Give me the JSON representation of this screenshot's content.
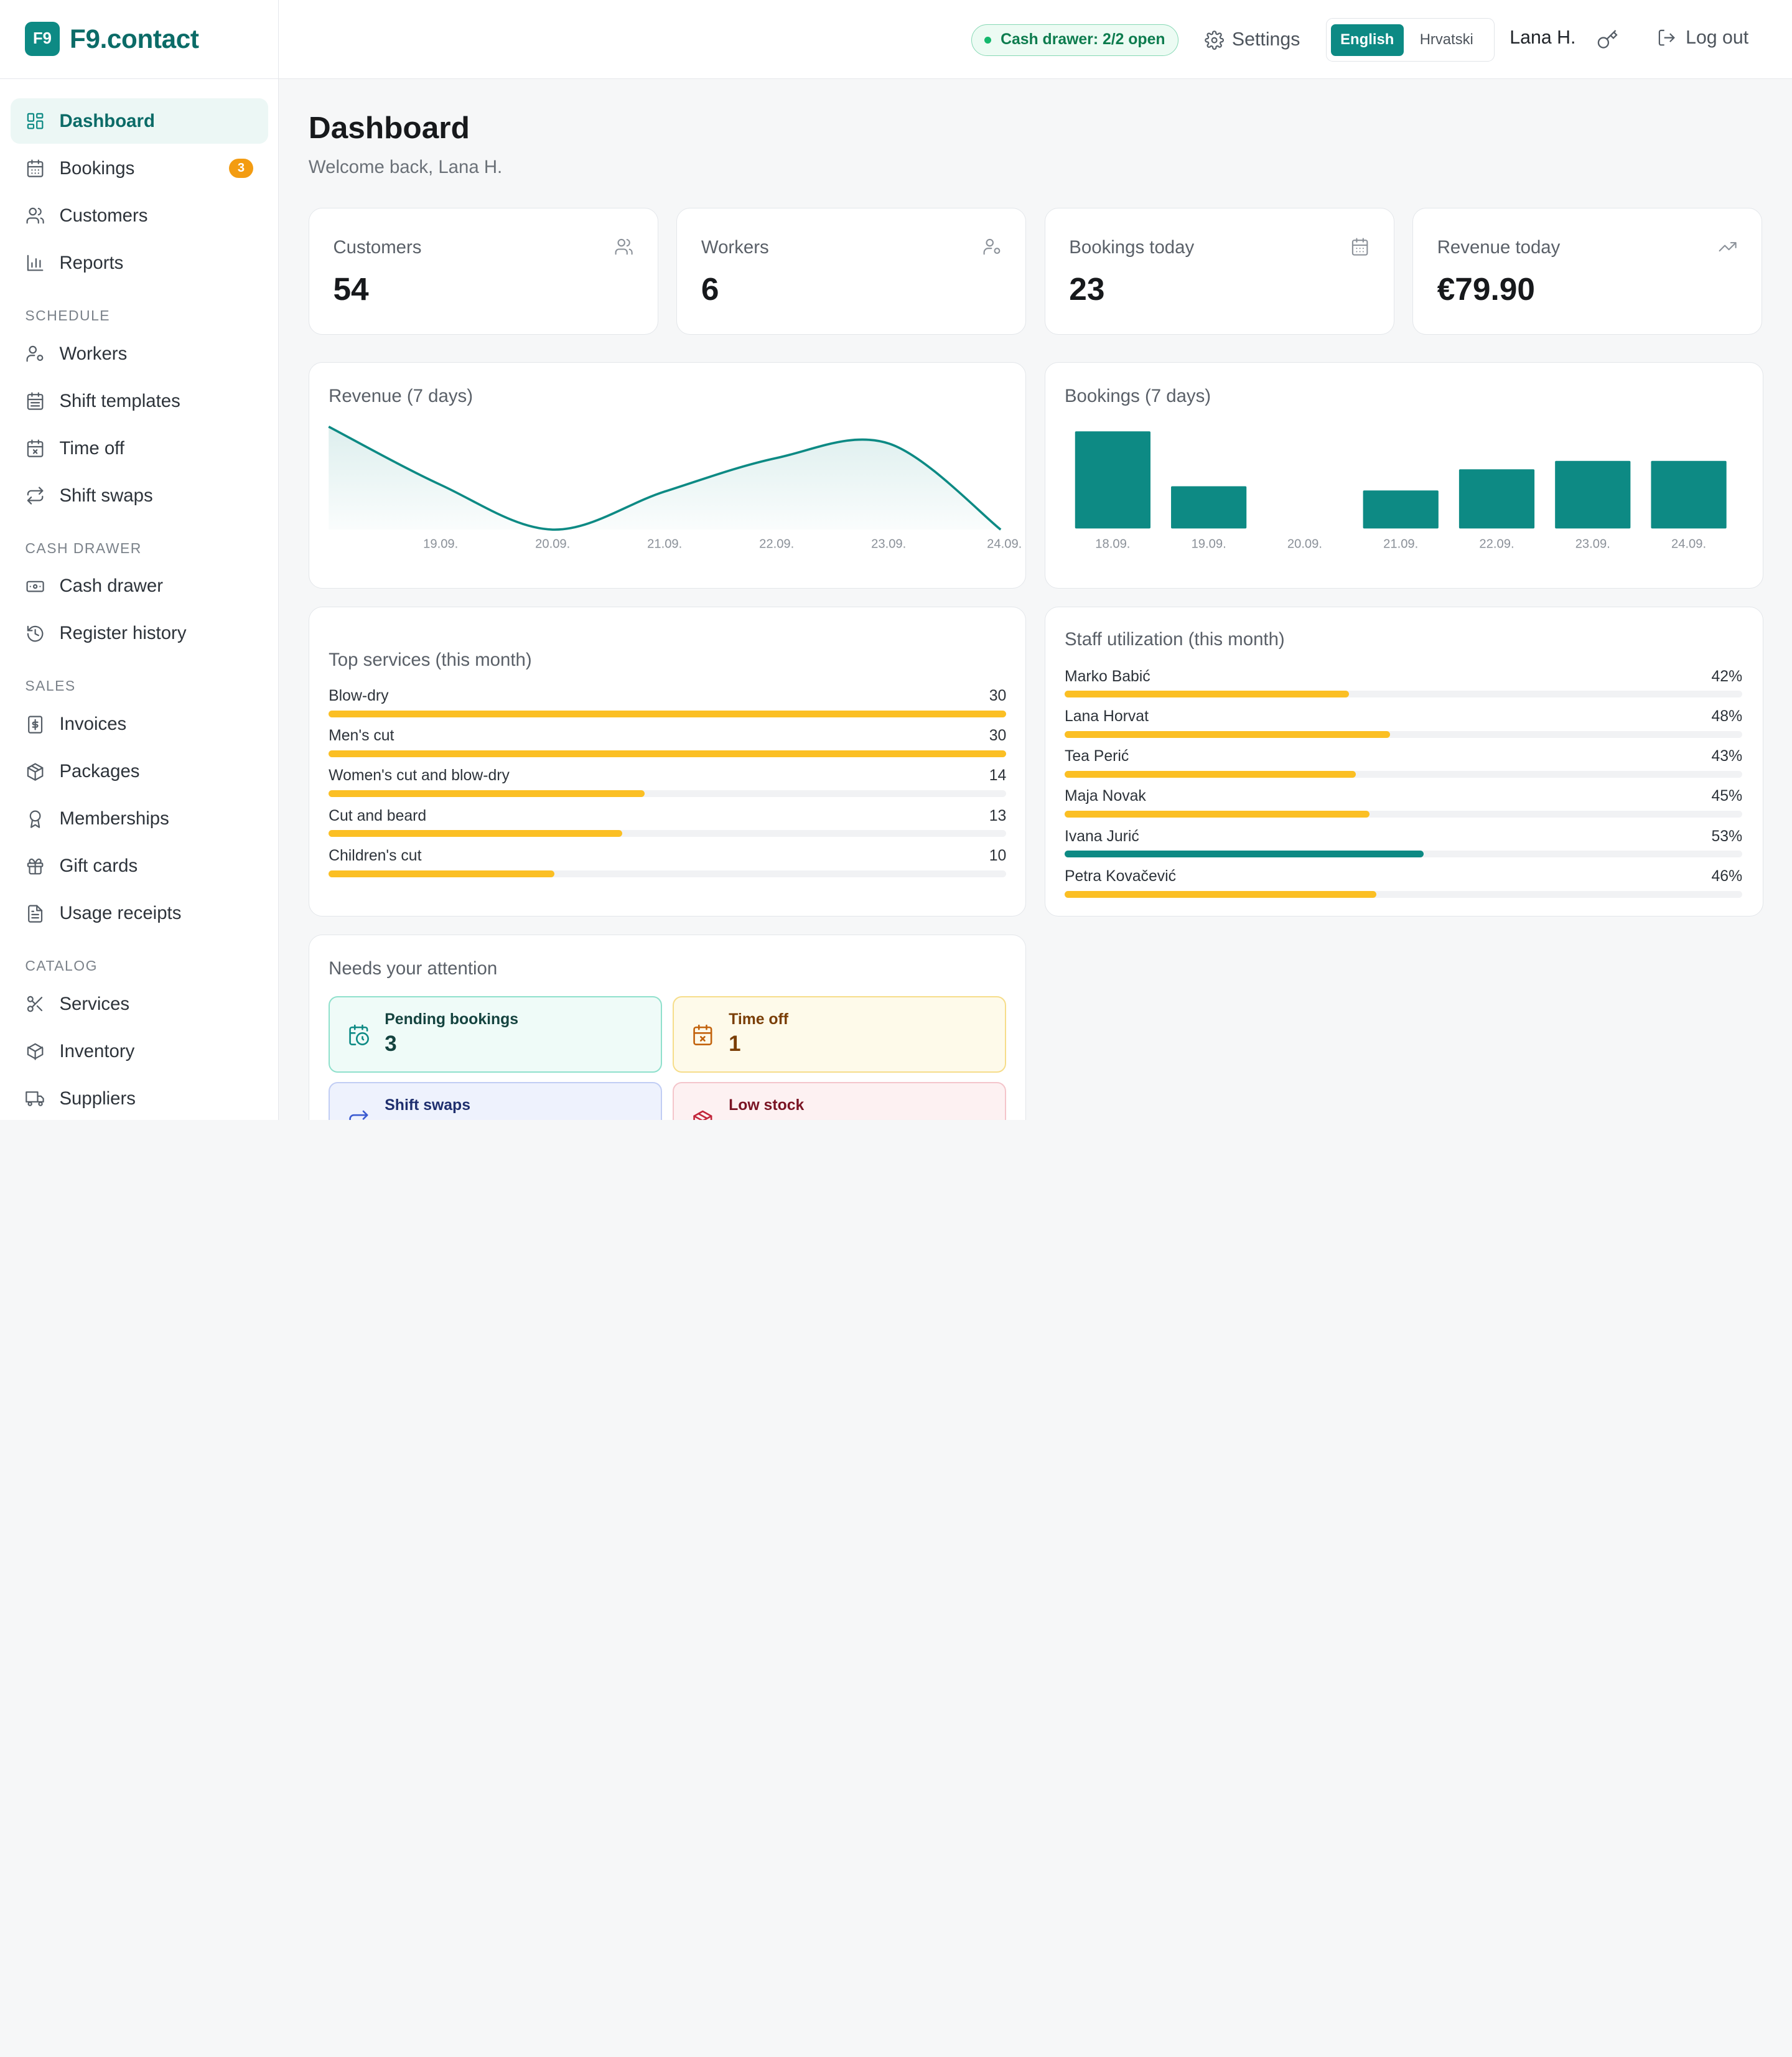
{
  "brand": {
    "logo_text": "F9",
    "name": "F9.contact"
  },
  "sidebar": {
    "items": [
      {
        "label": "Dashboard",
        "icon": "dashboard-icon",
        "active": true
      },
      {
        "label": "Bookings",
        "icon": "calendar-icon",
        "badge": "3"
      },
      {
        "label": "Customers",
        "icon": "users-icon"
      },
      {
        "label": "Reports",
        "icon": "bar-chart-icon"
      }
    ],
    "sections": [
      {
        "title": "SCHEDULE",
        "items": [
          {
            "label": "Workers",
            "icon": "user-cog-icon"
          },
          {
            "label": "Shift templates",
            "icon": "calendar-grid-icon"
          },
          {
            "label": "Time off",
            "icon": "calendar-x-icon"
          },
          {
            "label": "Shift swaps",
            "icon": "swap-icon"
          }
        ]
      },
      {
        "title": "CASH DRAWER",
        "items": [
          {
            "label": "Cash drawer",
            "icon": "banknote-icon"
          },
          {
            "label": "Register history",
            "icon": "history-icon"
          }
        ]
      },
      {
        "title": "SALES",
        "items": [
          {
            "label": "Invoices",
            "icon": "invoice-icon"
          },
          {
            "label": "Packages",
            "icon": "package-icon"
          },
          {
            "label": "Memberships",
            "icon": "award-icon"
          },
          {
            "label": "Gift cards",
            "icon": "gift-icon"
          },
          {
            "label": "Usage receipts",
            "icon": "receipt-icon"
          }
        ]
      },
      {
        "title": "CATALOG",
        "items": [
          {
            "label": "Services",
            "icon": "scissors-icon"
          },
          {
            "label": "Inventory",
            "icon": "box-icon"
          },
          {
            "label": "Suppliers",
            "icon": "truck-icon"
          }
        ]
      }
    ]
  },
  "topbar": {
    "cash_drawer": "Cash drawer: 2/2 open",
    "settings": "Settings",
    "lang_active": "English",
    "lang_other": "Hrvatski",
    "user": "Lana H.",
    "logout": "Log out"
  },
  "page": {
    "title": "Dashboard",
    "subtitle": "Welcome back, Lana H."
  },
  "stats": [
    {
      "label": "Customers",
      "value": "54",
      "icon": "users-icon"
    },
    {
      "label": "Workers",
      "value": "6",
      "icon": "user-cog-icon"
    },
    {
      "label": "Bookings today",
      "value": "23",
      "icon": "calendar-icon"
    },
    {
      "label": "Revenue today",
      "value": "€79.90",
      "icon": "trending-up-icon"
    }
  ],
  "revenue_card": {
    "title": "Revenue (7 days)"
  },
  "bookings_card": {
    "title": "Bookings (7 days)"
  },
  "chart_data": [
    {
      "type": "area",
      "title": "Revenue (7 days)",
      "x": [
        "18.09.",
        "19.09.",
        "20.09.",
        "21.09.",
        "22.09.",
        "23.09.",
        "24.09."
      ],
      "x_tick_labels": [
        "19.09.",
        "20.09.",
        "21.09.",
        "22.09.",
        "23.09.",
        "24.09."
      ],
      "values": [
        92,
        40,
        0,
        34,
        64,
        77,
        0
      ],
      "ylim": [
        0,
        95
      ],
      "grid": false,
      "color": "#0d8a84"
    },
    {
      "type": "bar",
      "title": "Bookings (7 days)",
      "categories": [
        "18.09.",
        "19.09.",
        "20.09.",
        "21.09.",
        "22.09.",
        "23.09.",
        "24.09."
      ],
      "values": [
        23,
        10,
        0,
        9,
        14,
        16,
        16
      ],
      "ylim": [
        0,
        23
      ],
      "grid": false,
      "color": "#0d8a84"
    }
  ],
  "top_services": {
    "title": "Top services (this month)",
    "max": 30,
    "items": [
      {
        "label": "Blow-dry",
        "value": 30
      },
      {
        "label": "Men's cut",
        "value": 30
      },
      {
        "label": "Women's cut and blow-dry",
        "value": 14
      },
      {
        "label": "Cut and beard",
        "value": 13
      },
      {
        "label": "Children's cut",
        "value": 10
      }
    ]
  },
  "staff_util": {
    "title": "Staff utilization (this month)",
    "items": [
      {
        "label": "Marko Babić",
        "value": 42,
        "display": "42%",
        "color": "#fbbf24"
      },
      {
        "label": "Lana Horvat",
        "value": 48,
        "display": "48%",
        "color": "#fbbf24"
      },
      {
        "label": "Tea Perić",
        "value": 43,
        "display": "43%",
        "color": "#fbbf24"
      },
      {
        "label": "Maja Novak",
        "value": 45,
        "display": "45%",
        "color": "#fbbf24"
      },
      {
        "label": "Ivana Jurić",
        "value": 53,
        "display": "53%",
        "color": "#0d8a84"
      },
      {
        "label": "Petra Kovačević",
        "value": 46,
        "display": "46%",
        "color": "#fbbf24"
      }
    ]
  },
  "attention": {
    "title": "Needs your attention",
    "items": [
      {
        "label": "Pending bookings",
        "value": "3",
        "icon": "calendar-clock-icon"
      },
      {
        "label": "Time off",
        "value": "1",
        "icon": "calendar-x-icon"
      },
      {
        "label": "Shift swaps",
        "value": "",
        "icon": "swap-icon"
      },
      {
        "label": "Low stock",
        "value": "",
        "icon": "package-icon"
      }
    ]
  },
  "colors": {
    "accent": "#0d8a84",
    "bar_yellow": "#fbbf24",
    "badge": "#f39c12"
  }
}
